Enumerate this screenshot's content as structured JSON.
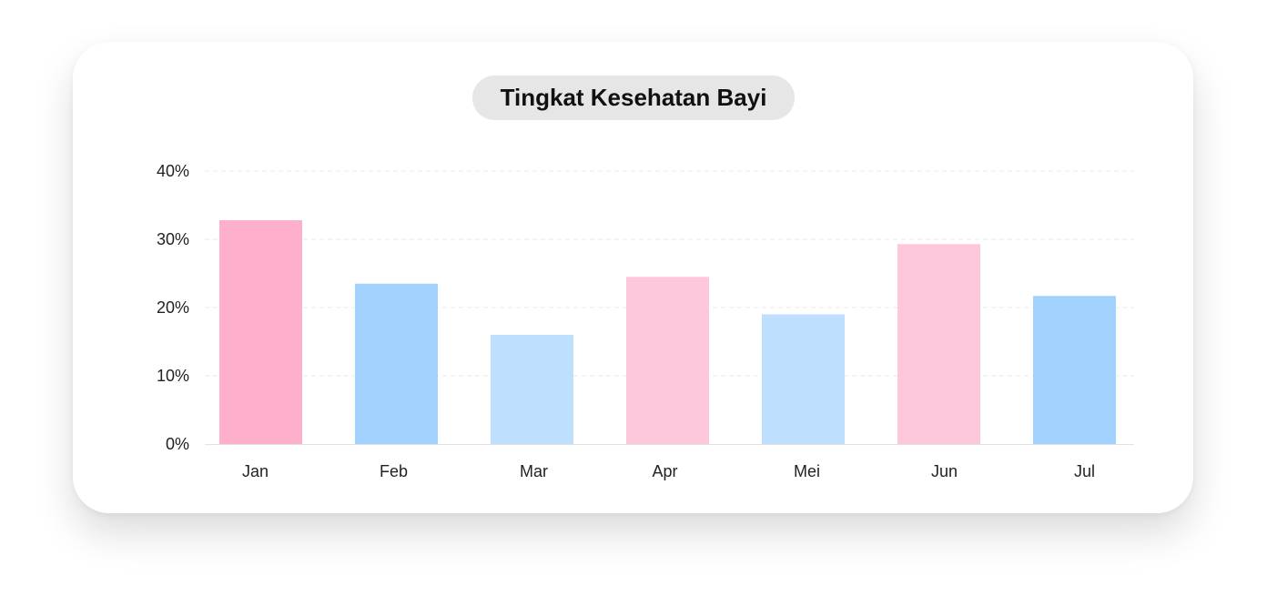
{
  "chart_data": {
    "type": "bar",
    "title": "Tingkat Kesehatan Bayi",
    "categories": [
      "Jan",
      "Feb",
      "Mar",
      "Apr",
      "Mei",
      "Jun",
      "Jul"
    ],
    "values": [
      32.8,
      23.5,
      16.0,
      24.5,
      19.0,
      29.3,
      21.7
    ],
    "bar_colors": [
      "#feafcb",
      "#a2d1fe",
      "#bee0fe",
      "#fec8dc",
      "#bee0fe",
      "#fec8dc",
      "#a2d1fe"
    ],
    "ylim": [
      0,
      40
    ],
    "yticks": [
      0,
      10,
      20,
      30,
      40
    ],
    "ytick_labels": [
      "0%",
      "10%",
      "20%",
      "30%",
      "40%"
    ],
    "grid": true,
    "xlabel": "",
    "ylabel": ""
  }
}
